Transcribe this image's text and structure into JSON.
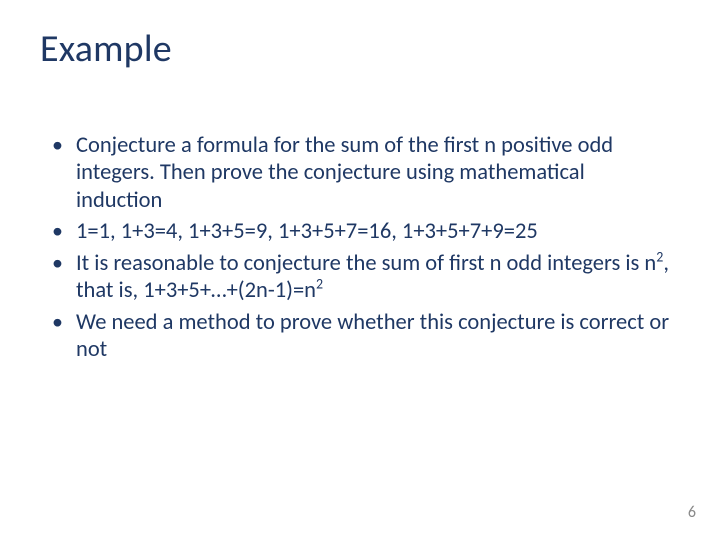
{
  "colors": {
    "title": "#1f3864",
    "body": "#1f3864",
    "bullet": "#1f3864",
    "pagenum": "#8a8a8a",
    "background": "#ffffff"
  },
  "typography": {
    "title_fontsize": 38,
    "body_fontsize": 22.5,
    "pagenum_fontsize": 16,
    "font_family": "Calibri"
  },
  "title": "Example",
  "bullets": [
    {
      "text": "Conjecture a formula for the sum of the first n positive odd integers. Then prove the conjecture using mathematical induction"
    },
    {
      "text": "1=1, 1+3=4, 1+3+5=9, 1+3+5+7=16, 1+3+5+7+9=25"
    },
    {
      "prefix": "It is reasonable to conjecture the sum of first n odd integers is n",
      "sup1": "2",
      "mid": ", that is, 1+3+5+…+(2n-1)=n",
      "sup2": "2"
    },
    {
      "text": "We need a method to prove whether this conjecture is correct or not"
    }
  ],
  "page_number": "6"
}
